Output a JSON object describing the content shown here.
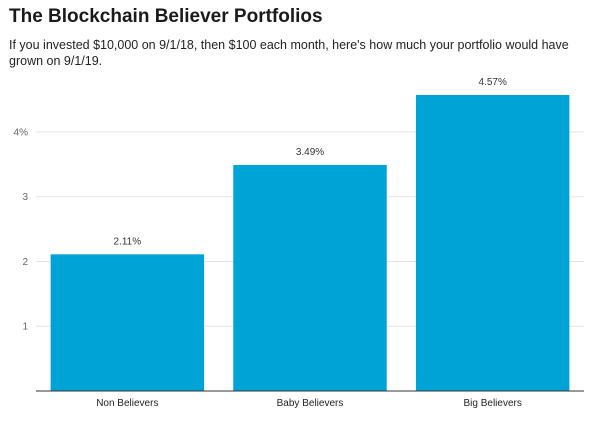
{
  "chart_data": {
    "type": "bar",
    "title": "The Blockchain Believer Portfolios",
    "subtitle": "If you invested $10,000 on 9/1/18, then $100 each month, here's how much your portfolio would have grown on 9/1/19.",
    "categories": [
      "Non Believers",
      "Baby Believers",
      "Big Believers"
    ],
    "values": [
      2.11,
      3.49,
      4.57
    ],
    "data_labels": [
      "2.11%",
      "3.49%",
      "4.57%"
    ],
    "y_ticks": [
      1,
      2,
      3,
      4
    ],
    "y_tick_labels": [
      "1",
      "2",
      "3",
      "4%"
    ],
    "ylim": [
      0,
      4.57
    ],
    "xlabel": "",
    "ylabel": "",
    "grid": true,
    "bar_color": "#00a3d6"
  }
}
